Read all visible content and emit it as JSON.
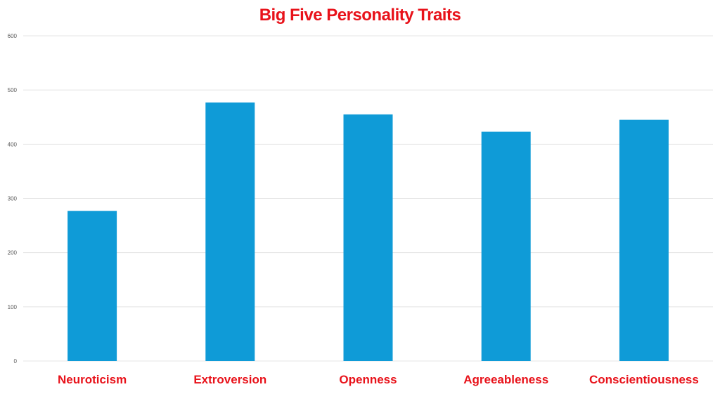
{
  "chart_data": {
    "type": "bar",
    "title": "Big Five Personality Traits",
    "xlabel": "",
    "ylabel": "",
    "categories": [
      "Neuroticism",
      "Extroversion",
      "Openness",
      "Agreeableness",
      "Conscientiousness"
    ],
    "values": [
      277,
      477,
      455,
      423,
      445
    ],
    "ylim": [
      0,
      600
    ],
    "yticks": [
      "0",
      "100",
      "200",
      "300",
      "400",
      "500",
      "600"
    ],
    "grid": true,
    "legend": "none"
  },
  "colors": {
    "bar": "#0f9bd7",
    "title": "#e8121a",
    "category_label": "#e8121a",
    "tick_label": "#595959",
    "grid": "#e4e4e4"
  }
}
